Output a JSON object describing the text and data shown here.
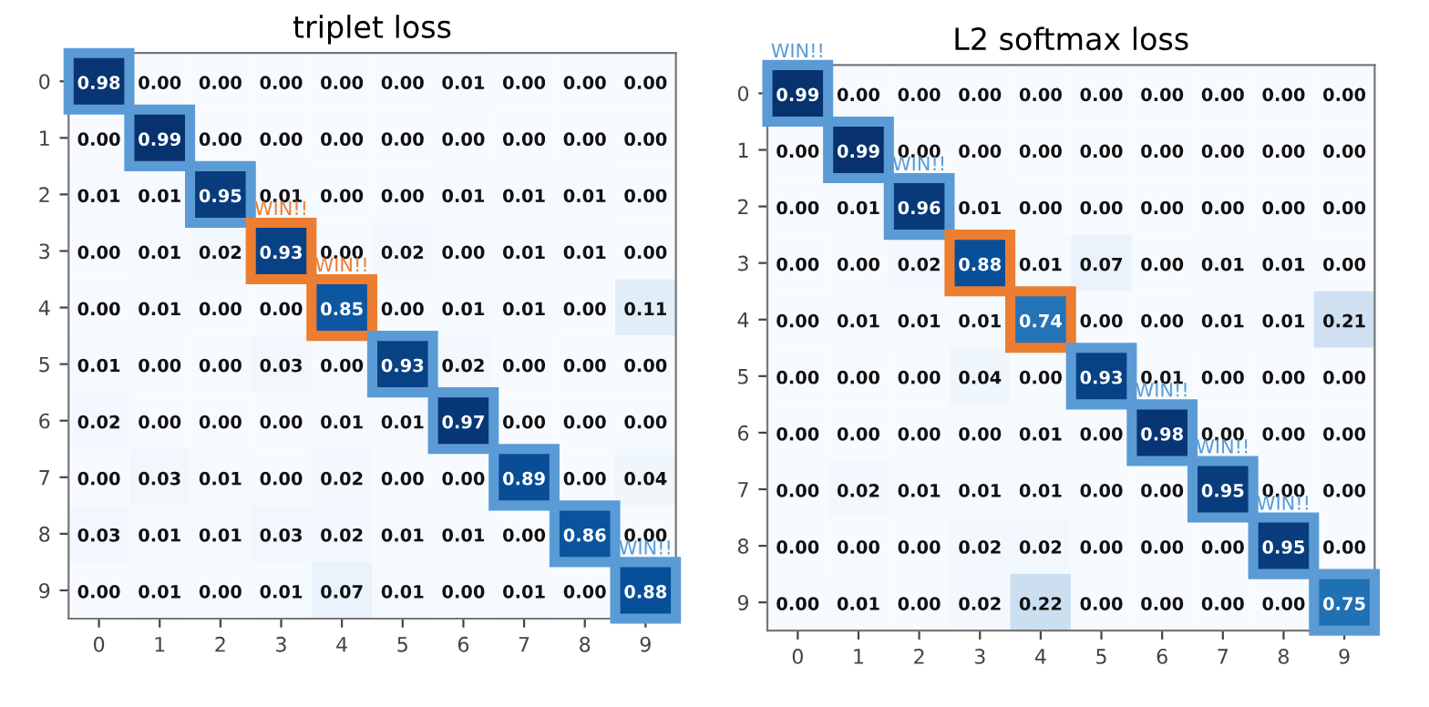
{
  "chart_data": [
    {
      "type": "heatmap",
      "title": "triplet loss",
      "categories": [
        "0",
        "1",
        "2",
        "3",
        "4",
        "5",
        "6",
        "7",
        "8",
        "9"
      ],
      "y_categories": [
        "0",
        "1",
        "2",
        "3",
        "4",
        "5",
        "6",
        "7",
        "8",
        "9"
      ],
      "cells": [
        [
          0.98,
          0.0,
          0.0,
          0.0,
          0.0,
          0.0,
          0.01,
          0.0,
          0.0,
          0.0
        ],
        [
          0.0,
          0.99,
          0.0,
          0.0,
          0.0,
          0.0,
          0.0,
          0.0,
          0.0,
          0.0
        ],
        [
          0.01,
          0.01,
          0.95,
          0.01,
          0.0,
          0.0,
          0.01,
          0.01,
          0.01,
          0.0
        ],
        [
          0.0,
          0.01,
          0.02,
          0.93,
          0.0,
          0.02,
          0.0,
          0.01,
          0.01,
          0.0
        ],
        [
          0.0,
          0.01,
          0.0,
          0.0,
          0.85,
          0.0,
          0.01,
          0.01,
          0.0,
          0.11
        ],
        [
          0.01,
          0.0,
          0.0,
          0.03,
          0.0,
          0.93,
          0.02,
          0.0,
          0.0,
          0.0
        ],
        [
          0.02,
          0.0,
          0.0,
          0.0,
          0.01,
          0.01,
          0.97,
          0.0,
          0.0,
          0.0
        ],
        [
          0.0,
          0.03,
          0.01,
          0.0,
          0.02,
          0.0,
          0.0,
          0.89,
          0.0,
          0.04
        ],
        [
          0.03,
          0.01,
          0.01,
          0.03,
          0.02,
          0.01,
          0.01,
          0.0,
          0.86,
          0.0
        ],
        [
          0.0,
          0.01,
          0.0,
          0.01,
          0.07,
          0.01,
          0.0,
          0.01,
          0.0,
          0.88
        ]
      ],
      "cell_labels": [
        [
          "0.98",
          "0.00",
          "0.00",
          "0.00",
          "0.00",
          "0.00",
          "0.01",
          "0.00",
          "0.00",
          "0.00"
        ],
        [
          "0.00",
          "0.99",
          "0.00",
          "0.00",
          "0.00",
          "0.00",
          "0.00",
          "0.00",
          "0.00",
          "0.00"
        ],
        [
          "0.01",
          "0.01",
          "0.95",
          "0.01",
          "0.00",
          "0.00",
          "0.01",
          "0.01",
          "0.01",
          "0.00"
        ],
        [
          "0.00",
          "0.01",
          "0.02",
          "0.93",
          "0.00",
          "0.02",
          "0.00",
          "0.01",
          "0.01",
          "0.00"
        ],
        [
          "0.00",
          "0.01",
          "0.00",
          "0.00",
          "0.85",
          "0.00",
          "0.01",
          "0.01",
          "0.00",
          "0.11"
        ],
        [
          "0.01",
          "0.00",
          "0.00",
          "0.03",
          "0.00",
          "0.93",
          "0.02",
          "0.00",
          "0.00",
          "0.00"
        ],
        [
          "0.02",
          "0.00",
          "0.00",
          "0.00",
          "0.01",
          "0.01",
          "0.97",
          "0.00",
          "0.00",
          "0.00"
        ],
        [
          "0.00",
          "0.03",
          "0.01",
          "0.00",
          "0.02",
          "0.00",
          "0.00",
          "0.89",
          "0.00",
          "0.04"
        ],
        [
          "0.03",
          "0.01",
          "0.01",
          "0.03",
          "0.02",
          "0.01",
          "0.01",
          "0.00",
          "0.86",
          "0.00"
        ],
        [
          "0.00",
          "0.01",
          "0.00",
          "0.01",
          "0.07",
          "0.01",
          "0.00",
          "0.01",
          "0.00",
          "0.88"
        ]
      ],
      "annotations": [
        {
          "text": "WIN!!",
          "x": "3",
          "y": "3"
        },
        {
          "text": "WIN!!",
          "x": "4",
          "y": "4"
        },
        {
          "text": "WIN!!",
          "x": "9",
          "y": "9"
        }
      ],
      "grid": false
    },
    {
      "type": "heatmap",
      "title": "L2 softmax loss",
      "categories": [
        "0",
        "1",
        "2",
        "3",
        "4",
        "5",
        "6",
        "7",
        "8",
        "9"
      ],
      "y_categories": [
        "0",
        "1",
        "2",
        "3",
        "4",
        "5",
        "6",
        "7",
        "8",
        "9"
      ],
      "cells": [
        [
          0.99,
          0.0,
          0.0,
          0.0,
          0.0,
          0.0,
          0.0,
          0.0,
          0.0,
          0.0
        ],
        [
          0.0,
          0.99,
          0.0,
          0.0,
          0.0,
          0.0,
          0.0,
          0.0,
          0.0,
          0.0
        ],
        [
          0.0,
          0.01,
          0.96,
          0.01,
          0.0,
          0.0,
          0.0,
          0.0,
          0.0,
          0.0
        ],
        [
          0.0,
          0.0,
          0.02,
          0.88,
          0.01,
          0.07,
          0.0,
          0.01,
          0.01,
          0.0
        ],
        [
          0.0,
          0.01,
          0.01,
          0.01,
          0.74,
          0.0,
          0.0,
          0.01,
          0.01,
          0.21
        ],
        [
          0.0,
          0.0,
          0.0,
          0.04,
          0.0,
          0.93,
          0.01,
          0.0,
          0.0,
          0.0
        ],
        [
          0.0,
          0.0,
          0.0,
          0.0,
          0.01,
          0.0,
          0.98,
          0.0,
          0.0,
          0.0
        ],
        [
          0.0,
          0.02,
          0.01,
          0.01,
          0.01,
          0.0,
          0.0,
          0.95,
          0.0,
          0.0
        ],
        [
          0.0,
          0.0,
          0.0,
          0.02,
          0.02,
          0.0,
          0.0,
          0.0,
          0.95,
          0.0
        ],
        [
          0.0,
          0.01,
          0.0,
          0.02,
          0.22,
          0.0,
          0.0,
          0.0,
          0.0,
          0.75
        ]
      ],
      "cell_labels": [
        [
          "0.99",
          "0.00",
          "0.00",
          "0.00",
          "0.00",
          "0.00",
          "0.00",
          "0.00",
          "0.00",
          "0.00"
        ],
        [
          "0.00",
          "0.99",
          "0.00",
          "0.00",
          "0.00",
          "0.00",
          "0.00",
          "0.00",
          "0.00",
          "0.00"
        ],
        [
          "0.00",
          "0.01",
          "0.96",
          "0.01",
          "0.00",
          "0.00",
          "0.00",
          "0.00",
          "0.00",
          "0.00"
        ],
        [
          "0.00",
          "0.00",
          "0.02",
          "0.88",
          "0.01",
          "0.07",
          "0.00",
          "0.01",
          "0.01",
          "0.00"
        ],
        [
          "0.00",
          "0.01",
          "0.01",
          "0.01",
          "0.74",
          "0.00",
          "0.00",
          "0.01",
          "0.01",
          "0.21"
        ],
        [
          "0.00",
          "0.00",
          "0.00",
          "0.04",
          "0.00",
          "0.93",
          "0.01",
          "0.00",
          "0.00",
          "0.00"
        ],
        [
          "0.00",
          "0.00",
          "0.00",
          "0.00",
          "0.01",
          "0.00",
          "0.98",
          "0.00",
          "0.00",
          "0.00"
        ],
        [
          "0.00",
          "0.02",
          "0.01",
          "0.01",
          "0.01",
          "0.00",
          "0.00",
          "0.95",
          "0.00",
          "0.00"
        ],
        [
          "0.00",
          "0.00",
          "0.00",
          "0.02",
          "0.02",
          "0.00",
          "0.00",
          "0.00",
          "0.95",
          "0.00"
        ],
        [
          "0.00",
          "0.01",
          "0.00",
          "0.02",
          "0.22",
          "0.00",
          "0.00",
          "0.00",
          "0.00",
          "0.75"
        ]
      ],
      "annotations": [
        {
          "text": "WIN!!",
          "x": "0",
          "y": "0"
        },
        {
          "text": "WIN!!",
          "x": "2",
          "y": "2"
        },
        {
          "text": "WIN!!",
          "x": "6",
          "y": "6"
        },
        {
          "text": "WIN!!",
          "x": "7",
          "y": "7"
        },
        {
          "text": "WIN!!",
          "x": "8",
          "y": "8"
        }
      ],
      "grid": false
    }
  ]
}
